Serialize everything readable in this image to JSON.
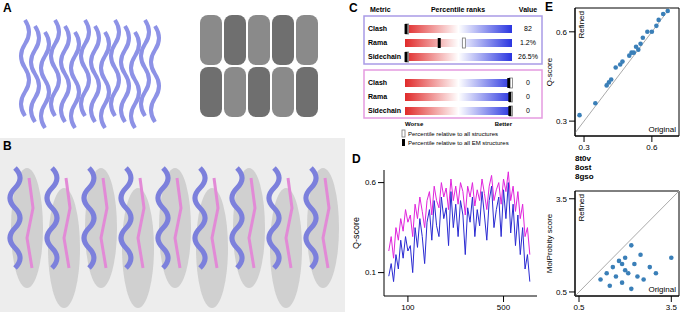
{
  "panel_labels": [
    "A",
    "B",
    "C",
    "D",
    "E"
  ],
  "structure_ids": [
    "8t0v",
    "8ost",
    "8gso"
  ],
  "validation_report": {
    "headers": [
      "Metric",
      "Percentile ranks",
      "Value"
    ],
    "scale": {
      "left": "Worse",
      "right": "Better"
    },
    "legend": [
      {
        "marker": "open",
        "label": "Percentile relative to all structures"
      },
      {
        "marker": "filled",
        "label": "Percentile relative to all EM structures"
      }
    ],
    "boxes": [
      {
        "color": "#a99be6",
        "rows": [
          {
            "metric": "Clash",
            "value": "82",
            "percentile_all": 2,
            "percentile_em": 1
          },
          {
            "metric": "Rama",
            "value": "1.2%",
            "percentile_all": 55,
            "percentile_em": 32
          },
          {
            "metric": "Sidechain",
            "value": "26.5%",
            "percentile_all": 2,
            "percentile_em": 1
          }
        ]
      },
      {
        "color": "#e59be0",
        "rows": [
          {
            "metric": "Clash",
            "value": "0",
            "percentile_all": 99,
            "percentile_em": 97
          },
          {
            "metric": "Rama",
            "value": "0",
            "percentile_all": 99,
            "percentile_em": 98
          },
          {
            "metric": "Sidechain",
            "value": "0",
            "percentile_all": 99,
            "percentile_em": 98
          }
        ]
      }
    ]
  },
  "chart_data": [
    {
      "type": "line",
      "ylabel": "Q-score",
      "x": [
        20,
        30,
        40,
        50,
        60,
        70,
        80,
        90,
        100,
        110,
        120,
        130,
        140,
        150,
        160,
        170,
        180,
        190,
        200,
        210,
        220,
        230,
        240,
        250,
        260,
        270,
        280,
        290,
        300,
        310,
        320,
        330,
        340,
        350,
        360,
        370,
        380,
        390,
        400,
        410,
        420,
        430,
        440,
        450,
        460,
        470,
        480,
        490,
        500,
        510,
        520,
        530,
        540,
        550,
        560,
        570,
        580,
        590,
        600,
        610
      ],
      "series": [
        {
          "color": "#e024dc",
          "values": [
            0.22,
            0.3,
            0.18,
            0.35,
            0.28,
            0.4,
            0.33,
            0.45,
            0.38,
            0.42,
            0.3,
            0.48,
            0.4,
            0.52,
            0.44,
            0.35,
            0.5,
            0.55,
            0.42,
            0.58,
            0.5,
            0.46,
            0.6,
            0.52,
            0.57,
            0.45,
            0.62,
            0.5,
            0.58,
            0.48,
            0.6,
            0.55,
            0.42,
            0.58,
            0.52,
            0.6,
            0.47,
            0.56,
            0.5,
            0.62,
            0.54,
            0.45,
            0.58,
            0.64,
            0.5,
            0.56,
            0.6,
            0.48,
            0.62,
            0.55,
            0.66,
            0.5,
            0.58,
            0.44,
            0.55,
            0.4,
            0.48,
            0.3,
            0.35,
            0.2
          ]
        },
        {
          "color": "#2a2ad2",
          "values": [
            0.08,
            0.15,
            0.05,
            0.2,
            0.12,
            0.28,
            0.18,
            0.3,
            0.22,
            0.25,
            0.1,
            0.35,
            0.24,
            0.4,
            0.3,
            0.15,
            0.38,
            0.45,
            0.28,
            0.5,
            0.36,
            0.3,
            0.52,
            0.4,
            0.46,
            0.25,
            0.55,
            0.35,
            0.48,
            0.3,
            0.5,
            0.42,
            0.2,
            0.46,
            0.38,
            0.52,
            0.3,
            0.45,
            0.36,
            0.55,
            0.42,
            0.28,
            0.5,
            0.58,
            0.35,
            0.45,
            0.52,
            0.3,
            0.56,
            0.4,
            0.6,
            0.32,
            0.48,
            0.25,
            0.42,
            0.2,
            0.35,
            0.12,
            0.2,
            0.05
          ]
        }
      ],
      "xlim": [
        0,
        640
      ],
      "xticks": [
        100,
        500
      ],
      "ylim": [
        -0.03,
        0.67
      ],
      "yticks": [
        0.1,
        0.6
      ],
      "grid": false
    },
    {
      "type": "scatter",
      "title": "Q-score",
      "xlabel": "Original",
      "ylabel": "Refined",
      "color": "#3a7fb8",
      "x": [
        0.28,
        0.35,
        0.4,
        0.41,
        0.42,
        0.44,
        0.46,
        0.47,
        0.5,
        0.51,
        0.52,
        0.53,
        0.54,
        0.55,
        0.56,
        0.58,
        0.6,
        0.62,
        0.63,
        0.65,
        0.67
      ],
      "values": [
        0.32,
        0.36,
        0.42,
        0.43,
        0.44,
        0.48,
        0.49,
        0.5,
        0.52,
        0.53,
        0.53,
        0.55,
        0.54,
        0.56,
        0.58,
        0.6,
        0.6,
        0.62,
        0.64,
        0.66,
        0.67
      ],
      "xlim": [
        0.26,
        0.72
      ],
      "xticks": [
        0.3,
        0.6
      ],
      "ylim": [
        0.25,
        0.68
      ],
      "yticks": [
        0.3,
        0.6
      ]
    },
    {
      "type": "scatter",
      "title": "MolProbity score",
      "xlabel": "Original",
      "ylabel": "Refined",
      "color": "#3a7fb8",
      "x": [
        1.2,
        1.4,
        1.5,
        1.6,
        1.7,
        1.8,
        1.9,
        2.0,
        2.0,
        2.1,
        2.2,
        2.3,
        2.4,
        2.5,
        2.6,
        2.8,
        3.0,
        3.5,
        2.2,
        1.9
      ],
      "values": [
        0.9,
        1.1,
        0.7,
        1.3,
        1.0,
        1.5,
        0.8,
        1.2,
        1.6,
        1.1,
        0.6,
        1.4,
        1.0,
        1.7,
        0.9,
        1.3,
        1.1,
        1.6,
        2.0,
        1.4
      ],
      "xlim": [
        0.37,
        3.75
      ],
      "xticks": [
        0.5,
        3.5
      ],
      "ylim": [
        0.37,
        3.75
      ],
      "yticks": [
        0.5,
        3.5
      ]
    }
  ]
}
